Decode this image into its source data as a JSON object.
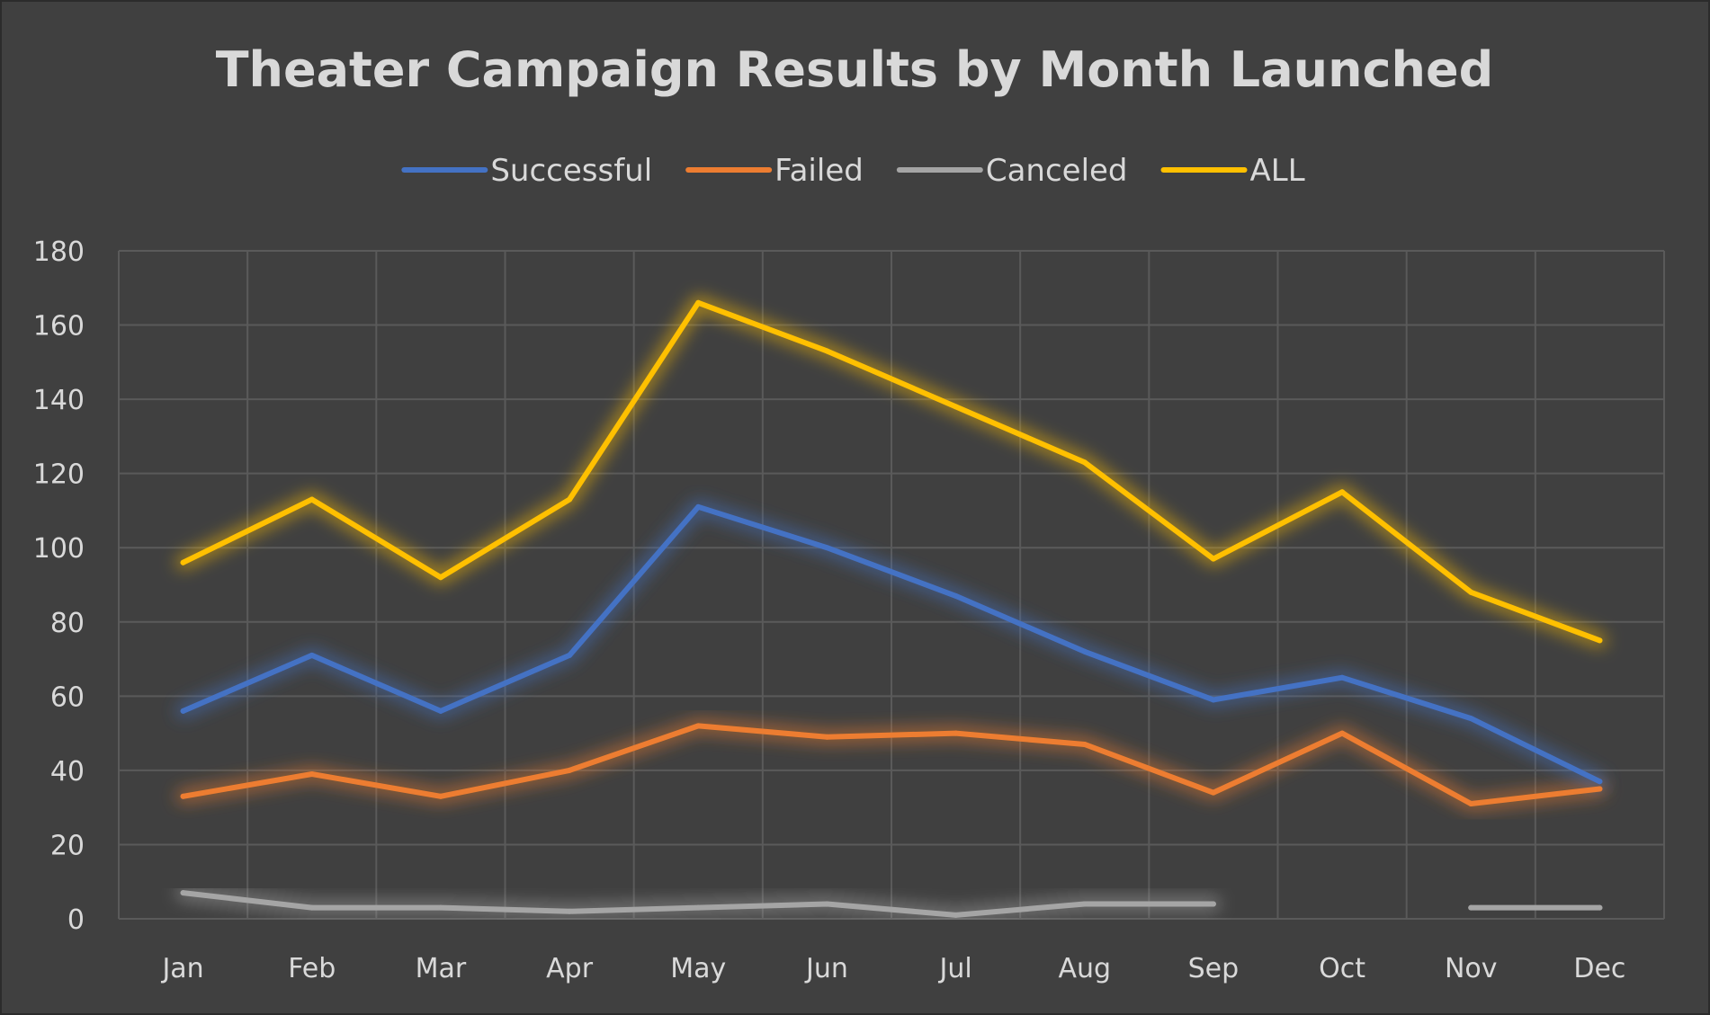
{
  "chart_data": {
    "type": "line",
    "title": "Theater Campaign Results by Month Launched",
    "xlabel": "",
    "ylabel": "",
    "categories": [
      "Jan",
      "Feb",
      "Mar",
      "Apr",
      "May",
      "Jun",
      "Jul",
      "Aug",
      "Sep",
      "Oct",
      "Nov",
      "Dec"
    ],
    "ylim": [
      0,
      180
    ],
    "yticks": [
      0,
      20,
      40,
      60,
      80,
      100,
      120,
      140,
      160,
      180
    ],
    "grid": true,
    "legend_position": "top",
    "series": [
      {
        "name": "Successful",
        "color": "#4472c4",
        "values": [
          56,
          71,
          56,
          71,
          111,
          100,
          87,
          72,
          59,
          65,
          54,
          37
        ]
      },
      {
        "name": "Failed",
        "color": "#ed7d31",
        "values": [
          33,
          39,
          33,
          40,
          52,
          49,
          50,
          47,
          34,
          50,
          31,
          35
        ]
      },
      {
        "name": "Canceled",
        "color": "#a5a5a5",
        "values": [
          7,
          3,
          3,
          2,
          3,
          4,
          1,
          4,
          4,
          null,
          3,
          3
        ]
      },
      {
        "name": "ALL",
        "color": "#ffc000",
        "values": [
          96,
          113,
          92,
          113,
          166,
          153,
          138,
          123,
          97,
          115,
          88,
          75
        ]
      }
    ]
  }
}
